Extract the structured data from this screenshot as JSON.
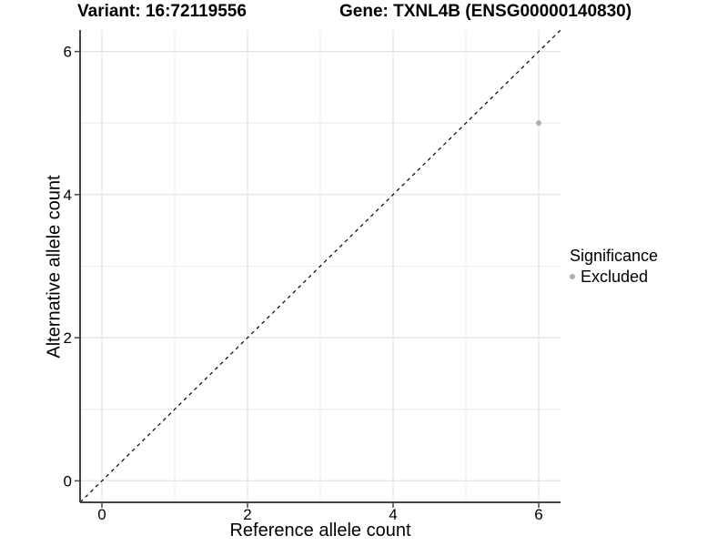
{
  "header": {
    "variant_title": "Variant: 16:72119556",
    "gene_title": "Gene: TXNL4B (ENSG00000140830)"
  },
  "axes": {
    "x_label": "Reference allele count",
    "y_label": "Alternative allele count"
  },
  "legend": {
    "title": "Significance",
    "items": [
      {
        "label": "Excluded",
        "color": "#b0b0b0"
      }
    ]
  },
  "colors": {
    "background": "#ffffff",
    "grid_major": "#e4e4e4",
    "grid_minor": "#ececec",
    "axis_line": "#444444",
    "tick_mark": "#444444",
    "text": "#000000",
    "reference_line": "#000000",
    "excluded_point": "#b0b0b0"
  },
  "chart_data": {
    "type": "scatter",
    "title": "Variant: 16:72119556 | Gene: TXNL4B (ENSG00000140830)",
    "xlabel": "Reference allele count",
    "ylabel": "Alternative allele count",
    "xlim": [
      -0.3,
      6.3
    ],
    "ylim": [
      -0.3,
      6.3
    ],
    "xticks": [
      0,
      2,
      4,
      6
    ],
    "yticks": [
      0,
      2,
      4,
      6
    ],
    "xticks_minor": [
      1,
      3,
      5
    ],
    "yticks_minor": [
      1,
      3,
      5
    ],
    "grid": "on",
    "legend_position": "right",
    "legend_title": "Significance",
    "series": [
      {
        "name": "Excluded",
        "color": "#b0b0b0",
        "point_radius": 3,
        "points": [
          {
            "x": 6,
            "y": 5
          }
        ]
      }
    ],
    "reference_line": {
      "kind": "identity",
      "slope": 1,
      "intercept": 0,
      "style": "dashed",
      "color": "#000000"
    }
  }
}
